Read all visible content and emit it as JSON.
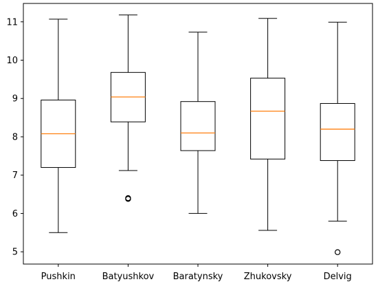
{
  "chart_data": {
    "type": "box",
    "title": "",
    "xlabel": "",
    "ylabel": "",
    "categories": [
      "Pushkin",
      "Batyushkov",
      "Baratynsky",
      "Zhukovsky",
      "Delvig"
    ],
    "boxes": [
      {
        "name": "Pushkin",
        "whisker_low": 5.5,
        "q1": 7.2,
        "median": 8.08,
        "q3": 8.96,
        "whisker_high": 11.07,
        "outliers": []
      },
      {
        "name": "Batyushkov",
        "whisker_low": 7.12,
        "q1": 8.39,
        "median": 9.04,
        "q3": 9.68,
        "whisker_high": 11.18,
        "outliers": [
          6.38,
          6.4
        ]
      },
      {
        "name": "Baratynsky",
        "whisker_low": 6.0,
        "q1": 7.64,
        "median": 8.1,
        "q3": 8.92,
        "whisker_high": 10.73,
        "outliers": []
      },
      {
        "name": "Zhukovsky",
        "whisker_low": 5.56,
        "q1": 7.42,
        "median": 8.67,
        "q3": 9.53,
        "whisker_high": 11.09,
        "outliers": []
      },
      {
        "name": "Delvig",
        "whisker_low": 5.8,
        "q1": 7.38,
        "median": 8.2,
        "q3": 8.87,
        "whisker_high": 10.99,
        "outliers": [
          4.99
        ]
      }
    ],
    "ylim": [
      4.68,
      11.48
    ],
    "yticks": [
      5,
      6,
      7,
      8,
      9,
      10,
      11
    ],
    "grid": false,
    "legend": "none",
    "colors": {
      "box": "#000000",
      "median": "#ff7f0e",
      "outlier": "#000000"
    }
  }
}
